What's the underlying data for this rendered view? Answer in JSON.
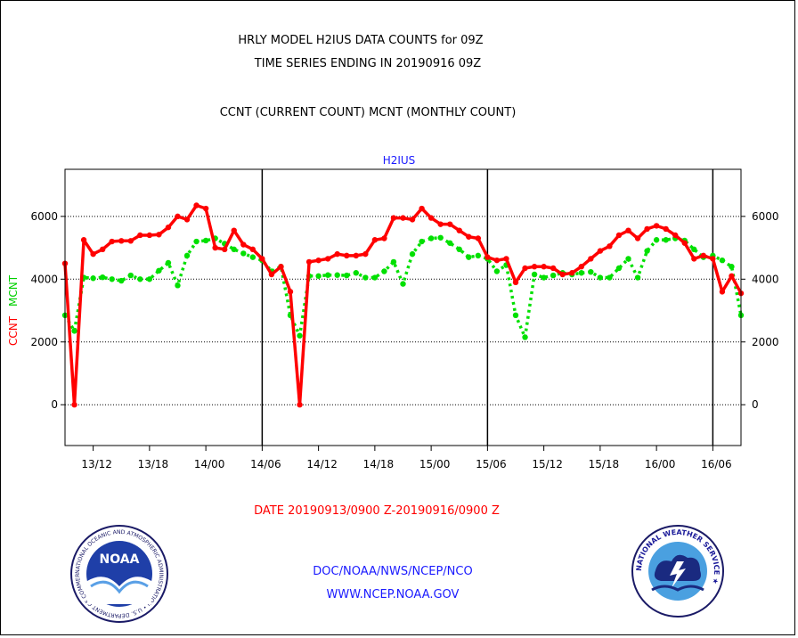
{
  "header": {
    "title_line1": "HRLY MODEL H2IUS DATA COUNTS for 09Z",
    "title_line2": "TIME SERIES ENDING IN 20190916 09Z",
    "legend_line": "CCNT (CURRENT COUNT) MCNT (MONTHLY COUNT)"
  },
  "footer": {
    "date_range": "DATE 20190913/0900 Z-20190916/0900 Z",
    "org": "DOC/NOAA/NWS/NCEP/NCO",
    "url": "WWW.NCEP.NOAA.GOV"
  },
  "logos": {
    "noaa_text": "NOAA",
    "noaa_ring": "NATIONAL OCEANIC AND ATMOSPHERIC ADMINISTRATION • U.S. DEPARTMENT OF COMMERCE •",
    "nws_ring": "NATIONAL WEATHER SERVICE ★"
  },
  "chart_data": {
    "type": "line",
    "title": "H2IUS",
    "ylabel_left": "CCNT",
    "ylabel_right": "MCNT",
    "ylim": [
      -1300,
      7500
    ],
    "xlim": [
      0,
      72
    ],
    "y_ticks": [
      0,
      2000,
      4000,
      6000
    ],
    "x_ticks": [
      {
        "x": 3,
        "label": "13/12"
      },
      {
        "x": 9,
        "label": "13/18"
      },
      {
        "x": 15,
        "label": "14/00"
      },
      {
        "x": 21,
        "label": "14/06"
      },
      {
        "x": 27,
        "label": "14/12"
      },
      {
        "x": 33,
        "label": "14/18"
      },
      {
        "x": 39,
        "label": "15/00"
      },
      {
        "x": 45,
        "label": "15/06"
      },
      {
        "x": 51,
        "label": "15/12"
      },
      {
        "x": 57,
        "label": "15/18"
      },
      {
        "x": 63,
        "label": "16/00"
      },
      {
        "x": 69,
        "label": "16/06"
      }
    ],
    "vlines": [
      21,
      45,
      69
    ],
    "grid": true,
    "series": [
      {
        "name": "CCNT",
        "color": "#ff0000",
        "style": "solid",
        "values": [
          4500,
          0,
          5250,
          4800,
          4950,
          5200,
          5220,
          5220,
          5400,
          5400,
          5420,
          5650,
          6000,
          5900,
          6350,
          6250,
          5000,
          4950,
          5550,
          5100,
          4950,
          4650,
          4150,
          4400,
          3600,
          0,
          4550,
          4600,
          4650,
          4800,
          4750,
          4750,
          4800,
          5250,
          5300,
          5950,
          5950,
          5900,
          6250,
          5950,
          5750,
          5750,
          5550,
          5350,
          5300,
          4700,
          4600,
          4650,
          3900,
          4350,
          4400,
          4400,
          4350,
          4150,
          4200,
          4400,
          4650,
          4900,
          5050,
          5400,
          5550,
          5300,
          5600,
          5700,
          5600,
          5400,
          5150,
          4650,
          4750,
          4650,
          3600,
          4100,
          3550
        ]
      },
      {
        "name": "MCNT",
        "color": "#00e000",
        "style": "dotted",
        "values": [
          2850,
          2350,
          4050,
          4030,
          4060,
          4000,
          3950,
          4120,
          4000,
          4000,
          4270,
          4520,
          3800,
          4750,
          5200,
          5230,
          5300,
          5130,
          4950,
          4820,
          4700,
          4600,
          4250,
          4400,
          2850,
          2200,
          4100,
          4100,
          4130,
          4130,
          4120,
          4200,
          4050,
          4050,
          4250,
          4550,
          3850,
          4800,
          5200,
          5300,
          5320,
          5150,
          4950,
          4700,
          4750,
          4650,
          4250,
          4450,
          2850,
          2150,
          4150,
          4050,
          4120,
          4200,
          4150,
          4200,
          4230,
          4050,
          4050,
          4350,
          4650,
          4050,
          4900,
          5250,
          5250,
          5300,
          5230,
          4950,
          4700,
          4750,
          4600,
          4400,
          2850
        ]
      }
    ]
  }
}
